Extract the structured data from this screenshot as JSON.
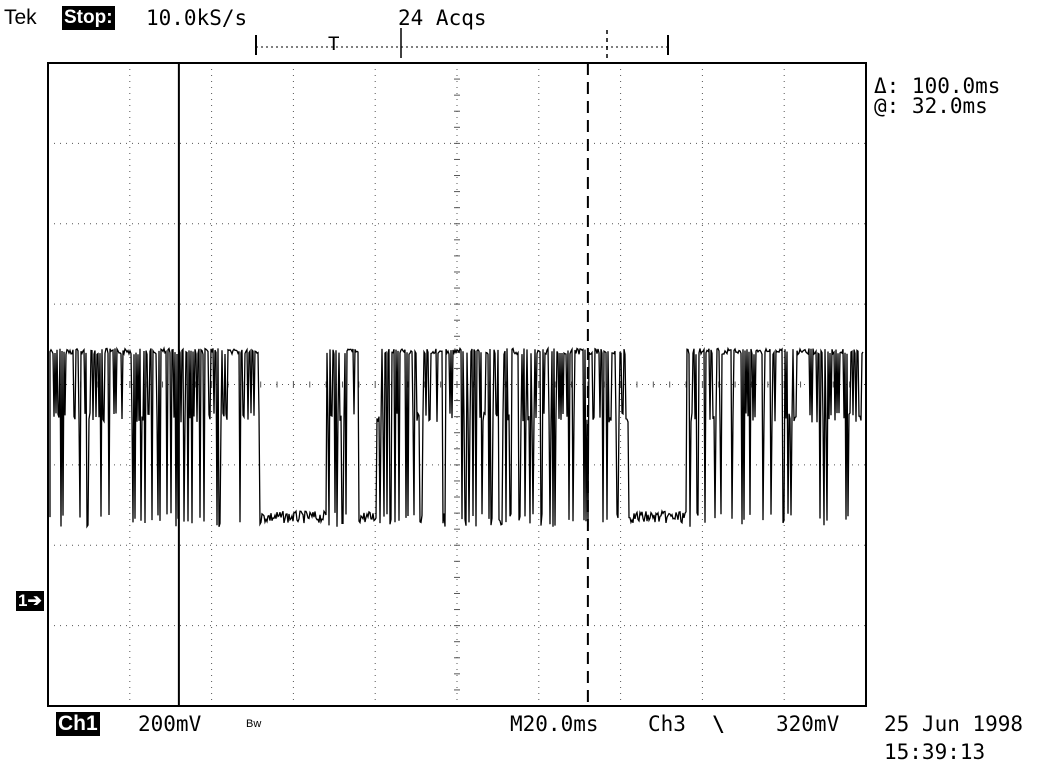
{
  "header": {
    "brand": "Tek",
    "run_state": "Stop:",
    "sample_rate": "10.0kS/s",
    "acquisitions": "24 Acqs",
    "record_bar_trigger": "T"
  },
  "cursor_readout": {
    "delta": "Δ: 100.0ms",
    "at": "@: 32.0ms"
  },
  "channel_marker": "1➔",
  "footer": {
    "channel": "Ch1",
    "volts_per_div": "200mV",
    "bw_limit": "Bw",
    "timebase": "M20.0ms",
    "trigger_source": "Ch3",
    "trigger_slope": "\\",
    "trigger_level": "320mV",
    "date": "25 Jun 1998",
    "time": "15:39:13"
  },
  "trace": {
    "color": "#000000",
    "grid_color": "#555555",
    "time_per_div_ms": 20,
    "cursor1_ms": 32,
    "cursor2_ms": 132,
    "burst_gaps_ms": [
      [
        52,
        68
      ],
      [
        76,
        80
      ],
      [
        142,
        156
      ]
    ]
  }
}
